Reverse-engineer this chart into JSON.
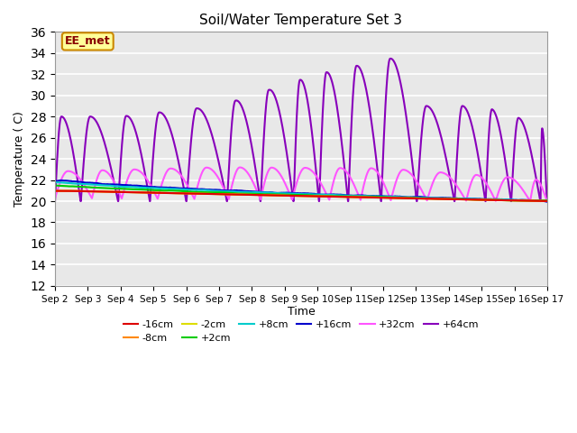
{
  "title": "Soil/Water Temperature Set 3",
  "xlabel": "Time",
  "ylabel": "Temperature (C)",
  "ylim": [
    12,
    36
  ],
  "yticks": [
    12,
    14,
    16,
    18,
    20,
    22,
    24,
    26,
    28,
    30,
    32,
    34,
    36
  ],
  "xtick_labels": [
    "Sep 2",
    "Sep 3",
    "Sep 4",
    "Sep 5",
    "Sep 6",
    "Sep 7",
    "Sep 8",
    "Sep 9",
    "Sep 10",
    "Sep 11",
    "Sep 12",
    "Sep 13",
    "Sep 14",
    "Sep 15",
    "Sep 16",
    "Sep 17"
  ],
  "background_color": "#e8e8e8",
  "series": {
    "-16cm": {
      "color": "#dd0000",
      "lw": 1.5
    },
    "-8cm": {
      "color": "#ff8800",
      "lw": 1.5
    },
    "-2cm": {
      "color": "#dddd00",
      "lw": 1.5
    },
    "+2cm": {
      "color": "#00cc00",
      "lw": 1.5
    },
    "+8cm": {
      "color": "#00cccc",
      "lw": 1.5
    },
    "+16cm": {
      "color": "#0000cc",
      "lw": 1.5
    },
    "+32cm": {
      "color": "#ff55ff",
      "lw": 1.5
    },
    "+64cm": {
      "color": "#8800bb",
      "lw": 1.5
    }
  },
  "watermark": "EE_met",
  "watermark_bg": "#ffff99",
  "watermark_border": "#cc8800",
  "watermark_text_color": "#880000"
}
